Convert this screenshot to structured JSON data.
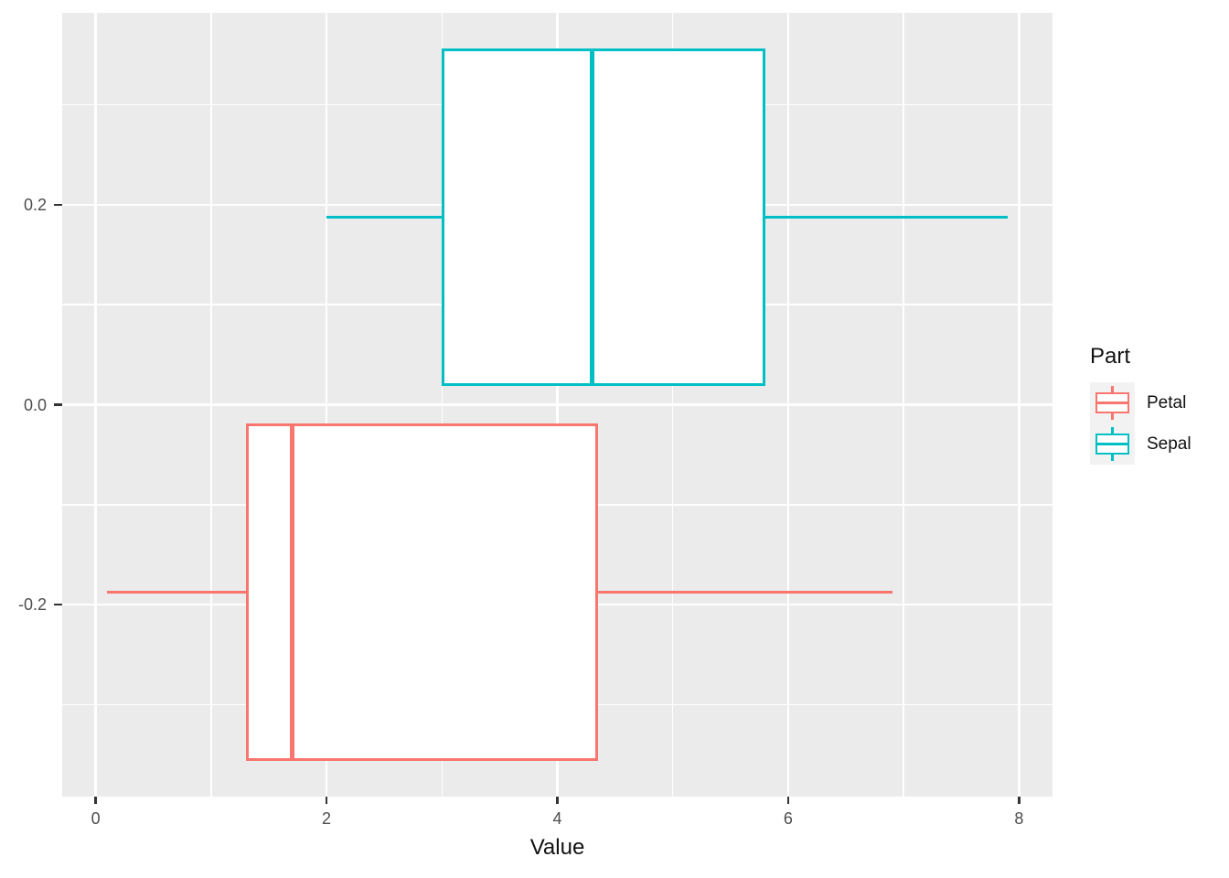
{
  "chart_data": {
    "type": "boxplot",
    "orientation": "horizontal",
    "title": "",
    "xlabel": "Value",
    "ylabel": "",
    "x_range": [
      -0.29,
      8.29
    ],
    "y_range": [
      -0.392,
      0.392
    ],
    "x_major_ticks": [
      0,
      2,
      4,
      6,
      8
    ],
    "x_tick_labels": [
      "0",
      "2",
      "4",
      "6",
      "8"
    ],
    "x_minor_ticks": [
      1,
      3,
      5,
      7
    ],
    "y_major_ticks": [
      0.2,
      0.0,
      -0.2
    ],
    "y_tick_labels": [
      "0.2",
      "0.0",
      "-0.2"
    ],
    "y_minor_ticks": [
      0.3,
      0.1,
      -0.1,
      -0.3
    ],
    "panel_background": "#EBEBEB",
    "gridline_color": "#FFFFFF",
    "grid": true,
    "legend_position": "right",
    "series": [
      {
        "name": "Petal",
        "color": "#F8766D",
        "min": 0.1,
        "q1": 1.3,
        "median": 1.7,
        "q3": 4.35,
        "max": 6.9,
        "y_center": -0.1875,
        "box_half_height": 0.16875
      },
      {
        "name": "Sepal",
        "color": "#00BFC4",
        "min": 2.0,
        "q1": 3.0,
        "median": 4.3,
        "q3": 5.8,
        "max": 7.9,
        "y_center": 0.1875,
        "box_half_height": 0.16875
      }
    ]
  },
  "legend": {
    "title": "Part",
    "key_background": "#F2F2F2",
    "items": [
      {
        "label": "Petal",
        "color": "#F8766D"
      },
      {
        "label": "Sepal",
        "color": "#00BFC4"
      }
    ]
  }
}
